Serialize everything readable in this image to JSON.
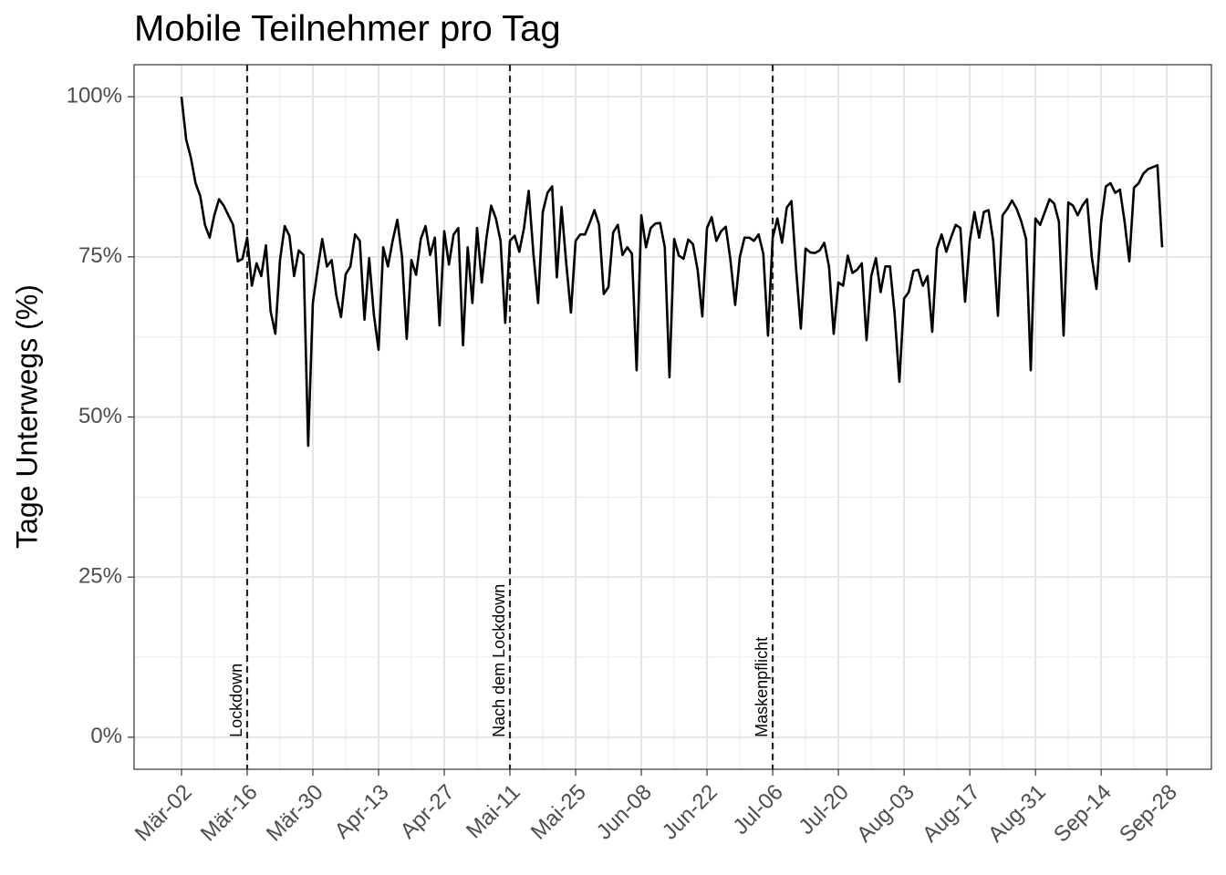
{
  "chart_data": {
    "type": "line",
    "title": "Mobile Teilnehmer pro Tag",
    "y_label": "Tage Unterwegs (%)",
    "color": "#000000",
    "grid": true,
    "x": [
      0,
      1,
      2,
      3,
      4,
      5,
      6,
      7,
      8,
      9,
      10,
      11,
      12,
      13,
      14,
      15,
      16,
      17,
      18,
      19,
      20,
      21,
      22,
      23,
      24,
      25,
      26,
      27,
      28,
      29,
      30,
      31,
      32,
      33,
      34,
      35,
      36,
      37,
      38,
      39,
      40,
      41,
      42,
      43,
      44,
      45,
      46,
      47,
      48,
      49,
      50,
      51,
      52,
      53,
      54,
      55,
      56,
      57,
      58,
      59,
      60,
      61,
      62,
      63,
      64,
      65,
      66,
      67,
      68,
      69,
      70,
      71,
      72,
      73,
      74,
      75,
      76,
      77,
      78,
      79,
      80,
      81,
      82,
      83,
      84,
      85,
      86,
      87,
      88,
      89,
      90,
      91,
      92,
      93,
      94,
      95,
      96,
      97,
      98,
      99,
      100,
      101,
      102,
      103,
      104,
      105,
      106,
      107,
      108,
      109,
      110,
      111,
      112,
      113,
      114,
      115,
      116,
      117,
      118,
      119,
      120,
      121,
      122,
      123,
      124,
      125,
      126,
      127,
      128,
      129,
      130,
      131,
      132,
      133,
      134,
      135,
      136,
      137,
      138,
      139,
      140,
      141,
      142,
      143,
      144,
      145,
      146,
      147,
      148,
      149,
      150,
      151,
      152,
      153,
      154,
      155,
      156,
      157,
      158,
      159,
      160,
      161,
      162,
      163,
      164,
      165,
      166,
      167,
      168,
      169,
      170,
      171,
      172,
      173,
      174,
      175,
      176,
      177,
      178,
      179,
      180,
      181,
      182,
      183,
      184,
      185,
      186,
      187,
      188,
      189,
      190,
      191,
      192,
      193,
      194,
      195,
      196,
      197,
      198,
      199,
      200,
      201,
      202,
      203,
      204,
      205,
      206,
      207,
      208,
      209
    ],
    "values": [
      100,
      93.3,
      90.5,
      86.5,
      84.5,
      80,
      78,
      81.5,
      84,
      83,
      81.5,
      80,
      74.3,
      74.7,
      78,
      70.5,
      74,
      72,
      76.8,
      66.5,
      63,
      74.5,
      79.8,
      78.3,
      72,
      76,
      75.3,
      45.5,
      67.8,
      73,
      77.8,
      73.5,
      74.5,
      69,
      65.6,
      72.3,
      73.5,
      78.5,
      77.5,
      65.2,
      74.8,
      66,
      60.5,
      76.5,
      73.5,
      77.5,
      80.8,
      75,
      62.2,
      74.5,
      72.2,
      77.8,
      79.8,
      75.3,
      78,
      64.3,
      79,
      73.8,
      78.5,
      79.5,
      61.2,
      76.5,
      67.8,
      79.5,
      71,
      78,
      83,
      81,
      77.5,
      64.7,
      77.5,
      78.3,
      75.8,
      79.5,
      85.3,
      75.5,
      67.8,
      82,
      85,
      86,
      71.8,
      82.8,
      74,
      66.3,
      77.5,
      78.5,
      78.5,
      80.3,
      82.3,
      80,
      69.2,
      70.3,
      78.8,
      80,
      75.3,
      76.5,
      75.5,
      57.3,
      81.5,
      76.5,
      79.5,
      80.2,
      80.3,
      76.5,
      56.2,
      77.8,
      75.2,
      74.7,
      77.7,
      77,
      73,
      65.7,
      79.5,
      81.2,
      77.5,
      79,
      79.7,
      74.5,
      67.5,
      75,
      78,
      78,
      77.5,
      78.5,
      75.5,
      62.7,
      78,
      81,
      77.2,
      82.7,
      83.7,
      73,
      63.8,
      76.3,
      75.7,
      75.6,
      76,
      77.2,
      73.5,
      63,
      71,
      70.5,
      75.2,
      72.5,
      73,
      74,
      62,
      72,
      74.8,
      69.5,
      73.5,
      73.5,
      66,
      55.5,
      68.5,
      69.5,
      72.8,
      73,
      70.5,
      72,
      63.3,
      76.3,
      78.5,
      75.8,
      78,
      80,
      79.5,
      68,
      77.5,
      82,
      78,
      82,
      82.3,
      77.5,
      65.8,
      81.5,
      82.5,
      83.8,
      82.5,
      80.5,
      77.8,
      57.3,
      81,
      80,
      82,
      84,
      83.3,
      80.5,
      62.7,
      83.5,
      83,
      81.5,
      83,
      84,
      75,
      70,
      80.5,
      86,
      86.5,
      85,
      85.5,
      80.5,
      74.3,
      85.8,
      86.5,
      88,
      88.7,
      89,
      89.3,
      76.5
    ],
    "xlim": [
      -10.1,
      219.5
    ],
    "xticks": [
      {
        "value": 0,
        "label": "Mär-02"
      },
      {
        "value": 14,
        "label": "Mär-16"
      },
      {
        "value": 28,
        "label": "Mär-30"
      },
      {
        "value": 42,
        "label": "Apr-13"
      },
      {
        "value": 56,
        "label": "Apr-27"
      },
      {
        "value": 70,
        "label": "Mai-11"
      },
      {
        "value": 84,
        "label": "Mai-25"
      },
      {
        "value": 98,
        "label": "Jun-08"
      },
      {
        "value": 112,
        "label": "Jun-22"
      },
      {
        "value": 126,
        "label": "Jul-06"
      },
      {
        "value": 140,
        "label": "Jul-20"
      },
      {
        "value": 154,
        "label": "Aug-03"
      },
      {
        "value": 168,
        "label": "Aug-17"
      },
      {
        "value": 182,
        "label": "Aug-31"
      },
      {
        "value": 196,
        "label": "Sep-14"
      },
      {
        "value": 210,
        "label": "Sep-28"
      }
    ],
    "ylim": [
      -5,
      105
    ],
    "yticks": [
      {
        "value": 0,
        "label": "0%"
      },
      {
        "value": 25,
        "label": "25%"
      },
      {
        "value": 50,
        "label": "50%"
      },
      {
        "value": 75,
        "label": "75%"
      },
      {
        "value": 100,
        "label": "100%"
      }
    ],
    "vlines": [
      {
        "x": 14,
        "label": "Lockdown"
      },
      {
        "x": 70,
        "label": "Nach dem Lockdown"
      },
      {
        "x": 126,
        "label": "Maskenpflicht"
      }
    ]
  }
}
